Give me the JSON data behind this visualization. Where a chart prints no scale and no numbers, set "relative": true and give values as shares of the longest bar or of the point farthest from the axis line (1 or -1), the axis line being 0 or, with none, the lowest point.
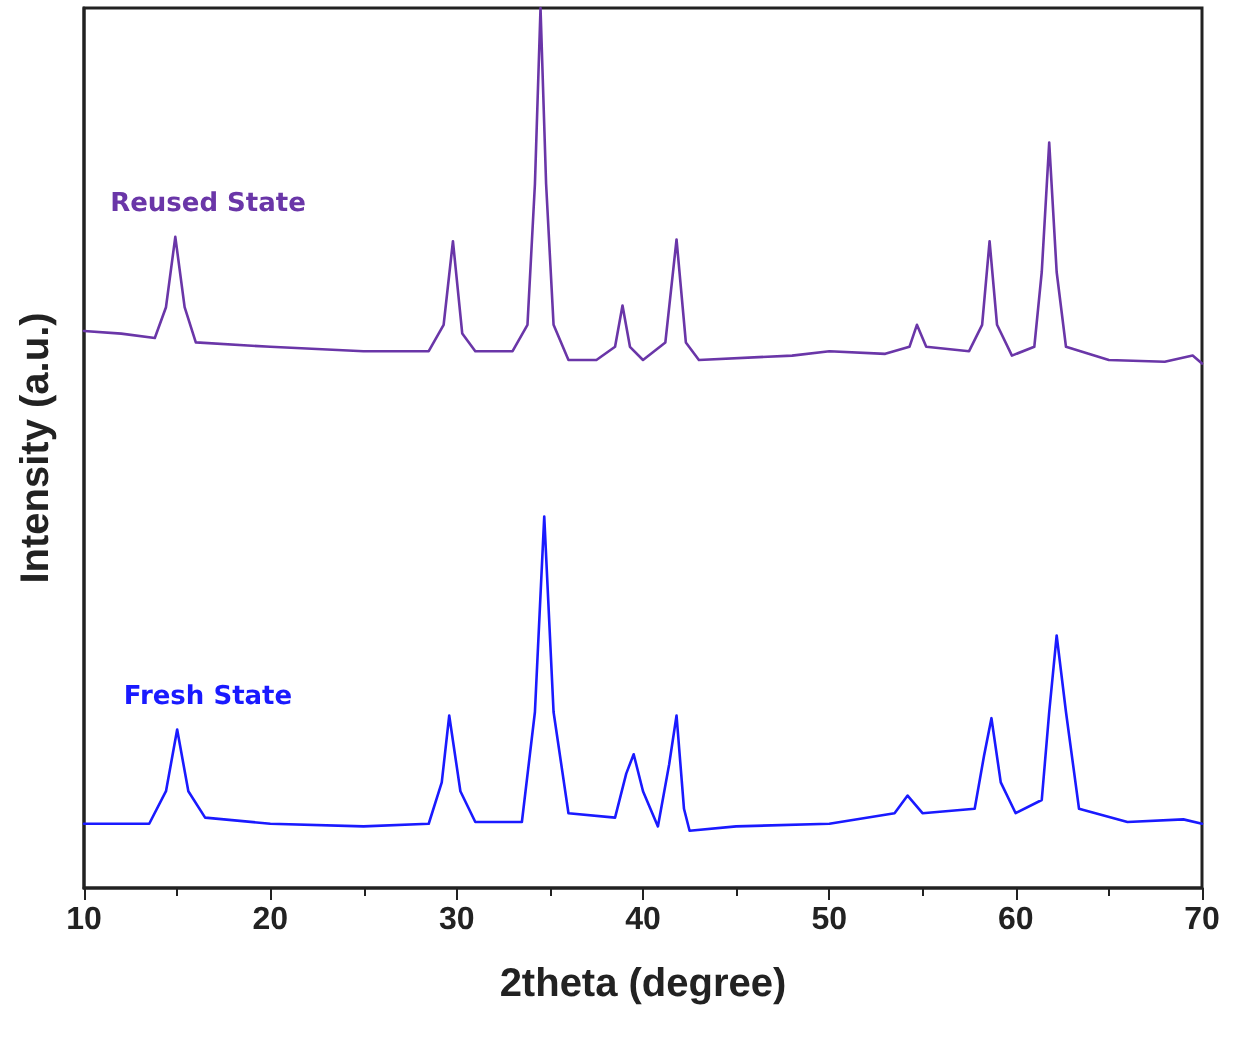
{
  "chart_data": {
    "type": "line",
    "xlabel": "2theta (degree)",
    "ylabel": "Intensity (a.u.)",
    "xlim": [
      10,
      70
    ],
    "xticks": [
      10,
      20,
      30,
      40,
      50,
      60,
      70
    ],
    "relative": true,
    "grid": false,
    "marker": "none",
    "line_style": "solid",
    "series": [
      {
        "name": "Reused State",
        "color": "#6a36a8",
        "x": [
          10,
          12,
          13.8,
          14.4,
          14.9,
          15.4,
          16,
          20,
          25,
          28.5,
          29.3,
          29.8,
          30.3,
          31,
          33,
          33.8,
          34.2,
          34.5,
          34.8,
          35.2,
          36,
          37.5,
          38.5,
          38.9,
          39.3,
          40,
          41.2,
          41.8,
          42.3,
          43,
          48,
          50,
          53,
          54.3,
          54.7,
          55.2,
          57.5,
          58.2,
          58.6,
          59,
          59.8,
          61,
          61.4,
          61.8,
          62.2,
          62.7,
          65,
          68,
          69.5,
          70
        ],
        "values": [
          0.633,
          0.63,
          0.625,
          0.66,
          0.74,
          0.66,
          0.62,
          0.615,
          0.61,
          0.61,
          0.64,
          0.735,
          0.63,
          0.61,
          0.61,
          0.64,
          0.8,
          1,
          0.8,
          0.64,
          0.6,
          0.6,
          0.615,
          0.662,
          0.615,
          0.6,
          0.62,
          0.737,
          0.62,
          0.6,
          0.605,
          0.61,
          0.607,
          0.615,
          0.64,
          0.615,
          0.61,
          0.64,
          0.735,
          0.64,
          0.605,
          0.615,
          0.7,
          0.847,
          0.7,
          0.615,
          0.6,
          0.598,
          0.605,
          0.596
        ]
      },
      {
        "name": "Fresh State",
        "color": "#1a1aff",
        "x": [
          10,
          13.5,
          14.4,
          15,
          15.6,
          16.5,
          20,
          25,
          28.5,
          29.2,
          29.6,
          30.2,
          31,
          33.5,
          34.2,
          34.7,
          35.2,
          36,
          38.5,
          39.1,
          39.5,
          40,
          40.8,
          41.4,
          41.8,
          42.2,
          42.5,
          45,
          50,
          53.5,
          54.2,
          55,
          57.8,
          58.3,
          58.7,
          59.2,
          60,
          61.4,
          61.8,
          62.2,
          62.7,
          63.4,
          66,
          69,
          70
        ],
        "values": [
          0.073,
          0.073,
          0.11,
          0.18,
          0.11,
          0.08,
          0.073,
          0.07,
          0.073,
          0.12,
          0.196,
          0.11,
          0.075,
          0.075,
          0.2,
          0.422,
          0.2,
          0.085,
          0.08,
          0.13,
          0.152,
          0.11,
          0.07,
          0.14,
          0.196,
          0.09,
          0.065,
          0.07,
          0.073,
          0.085,
          0.105,
          0.085,
          0.09,
          0.15,
          0.193,
          0.12,
          0.085,
          0.1,
          0.2,
          0.287,
          0.2,
          0.09,
          0.075,
          0.078,
          0.073
        ]
      }
    ]
  }
}
